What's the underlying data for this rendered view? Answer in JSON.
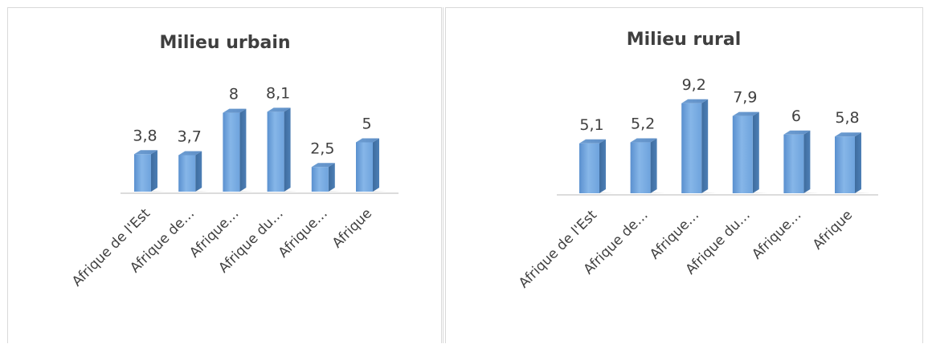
{
  "chart_data": [
    {
      "type": "bar",
      "title": "Milieu urbain",
      "categories": [
        "Afrique de l'Est",
        "Afrique de…",
        "Afrique…",
        "Afrique du…",
        "Afrique…",
        "Afrique"
      ],
      "values": [
        3.8,
        3.7,
        8,
        8.1,
        2.5,
        5
      ],
      "value_labels": [
        "3,8",
        "3,7",
        "8",
        "8,1",
        "2,5",
        "5"
      ],
      "grid": false,
      "legend": "none",
      "bar_color": "#6fa3dc"
    },
    {
      "type": "bar",
      "title": "Milieu rural",
      "categories": [
        "Afrique de l'Est",
        "Afrique de…",
        "Afrique…",
        "Afrique du…",
        "Afrique…",
        "Afrique"
      ],
      "values": [
        5.1,
        5.2,
        9.2,
        7.9,
        6,
        5.8
      ],
      "value_labels": [
        "5,1",
        "5,2",
        "9,2",
        "7,9",
        "6",
        "5,8"
      ],
      "grid": false,
      "legend": "none",
      "bar_color": "#6fa3dc"
    }
  ]
}
